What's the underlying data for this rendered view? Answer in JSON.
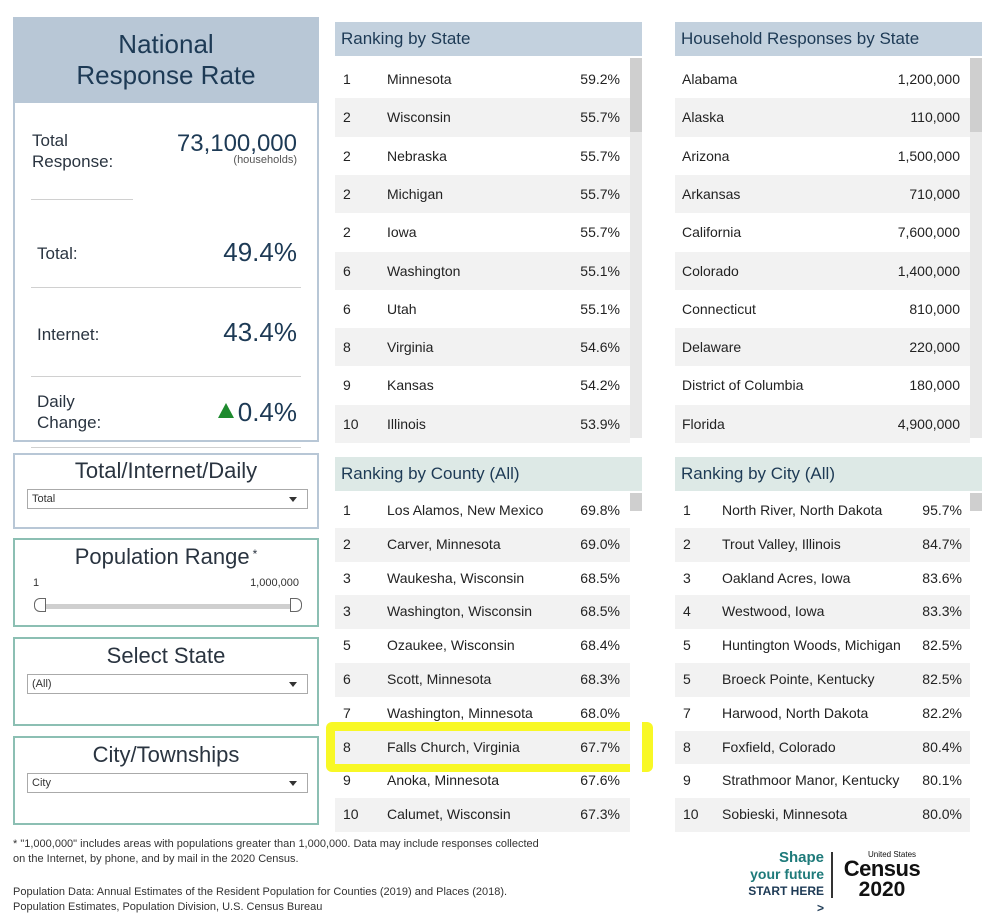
{
  "national": {
    "title_line1": "National",
    "title_line2": "Response Rate",
    "total_response_label_1": "Total",
    "total_response_label_2": "Response:",
    "total_response_value": "73,100,000",
    "total_response_unit": "(households)",
    "total_label": "Total:",
    "total_value": "49.4%",
    "internet_label": "Internet:",
    "internet_value": "43.4%",
    "daily_label_1": "Daily",
    "daily_label_2": "Change:",
    "daily_value": "0.4%"
  },
  "filters": {
    "tid_title": "Total/Internet/Daily",
    "tid_value": "Total",
    "pop_title": "Population Range",
    "pop_star": "*",
    "pop_min": "1",
    "pop_max": "1,000,000",
    "state_title": "Select State",
    "state_value": "(All)",
    "city_title": "City/Townships",
    "city_value": "City"
  },
  "ranking_state": {
    "title": "Ranking by State",
    "rows": [
      {
        "rank": "1",
        "name": "Minnesota",
        "pct": "59.2%"
      },
      {
        "rank": "2",
        "name": "Wisconsin",
        "pct": "55.7%"
      },
      {
        "rank": "2",
        "name": "Nebraska",
        "pct": "55.7%"
      },
      {
        "rank": "2",
        "name": "Michigan",
        "pct": "55.7%"
      },
      {
        "rank": "2",
        "name": "Iowa",
        "pct": "55.7%"
      },
      {
        "rank": "6",
        "name": "Washington",
        "pct": "55.1%"
      },
      {
        "rank": "6",
        "name": "Utah",
        "pct": "55.1%"
      },
      {
        "rank": "8",
        "name": "Virginia",
        "pct": "54.6%"
      },
      {
        "rank": "9",
        "name": "Kansas",
        "pct": "54.2%"
      },
      {
        "rank": "10",
        "name": "Illinois",
        "pct": "53.9%"
      }
    ]
  },
  "household_state": {
    "title": "Household Responses by State",
    "rows": [
      {
        "name": "Alabama",
        "value": "1,200,000"
      },
      {
        "name": "Alaska",
        "value": "110,000"
      },
      {
        "name": "Arizona",
        "value": "1,500,000"
      },
      {
        "name": "Arkansas",
        "value": "710,000"
      },
      {
        "name": "California",
        "value": "7,600,000"
      },
      {
        "name": "Colorado",
        "value": "1,400,000"
      },
      {
        "name": "Connecticut",
        "value": "810,000"
      },
      {
        "name": "Delaware",
        "value": "220,000"
      },
      {
        "name": "District of Columbia",
        "value": "180,000"
      },
      {
        "name": "Florida",
        "value": "4,900,000"
      }
    ]
  },
  "ranking_county": {
    "title": "Ranking by County (All)",
    "rows": [
      {
        "rank": "1",
        "name": "Los Alamos, New Mexico",
        "pct": "69.8%"
      },
      {
        "rank": "2",
        "name": "Carver, Minnesota",
        "pct": "69.0%"
      },
      {
        "rank": "3",
        "name": "Waukesha, Wisconsin",
        "pct": "68.5%"
      },
      {
        "rank": "3",
        "name": "Washington, Wisconsin",
        "pct": "68.5%"
      },
      {
        "rank": "5",
        "name": "Ozaukee, Wisconsin",
        "pct": "68.4%"
      },
      {
        "rank": "6",
        "name": "Scott, Minnesota",
        "pct": "68.3%"
      },
      {
        "rank": "7",
        "name": "Washington, Minnesota",
        "pct": "68.0%"
      },
      {
        "rank": "8",
        "name": "Falls Church, Virginia",
        "pct": "67.7%"
      },
      {
        "rank": "9",
        "name": "Anoka, Minnesota",
        "pct": "67.6%"
      },
      {
        "rank": "10",
        "name": "Calumet, Wisconsin",
        "pct": "67.3%"
      }
    ]
  },
  "ranking_city": {
    "title": "Ranking by City (All)",
    "rows": [
      {
        "rank": "1",
        "name": "North River, North Dakota",
        "pct": "95.7%"
      },
      {
        "rank": "2",
        "name": "Trout Valley, Illinois",
        "pct": "84.7%"
      },
      {
        "rank": "3",
        "name": "Oakland Acres, Iowa",
        "pct": "83.6%"
      },
      {
        "rank": "4",
        "name": "Westwood, Iowa",
        "pct": "83.3%"
      },
      {
        "rank": "5",
        "name": "Huntington Woods, Michigan",
        "pct": "82.5%"
      },
      {
        "rank": "5",
        "name": "Broeck Pointe, Kentucky",
        "pct": "82.5%"
      },
      {
        "rank": "7",
        "name": "Harwood, North Dakota",
        "pct": "82.2%"
      },
      {
        "rank": "8",
        "name": "Foxfield, Colorado",
        "pct": "80.4%"
      },
      {
        "rank": "9",
        "name": "Strathmoor Manor, Kentucky",
        "pct": "80.1%"
      },
      {
        "rank": "10",
        "name": "Sobieski, Minnesota",
        "pct": "80.0%"
      }
    ]
  },
  "footer": {
    "note_line1": "* \"1,000,000\" includes areas with populations greater than 1,000,000.  Data may include responses collected",
    "note_line2": "on the Internet, by phone, and by mail in the 2020 Census.",
    "source_line1": "Population Data: Annual Estimates of the Resident Population for Counties (2019) and Places (2018).",
    "source_line2": "Population Estimates, Population Division, U.S. Census Bureau"
  },
  "logo": {
    "shape": "Shape",
    "your_future": "your future",
    "start_here": "START HERE >",
    "united_states": "United States",
    "census": "Census",
    "year": "2020"
  },
  "colors": {
    "header_blue": "#c3d1de",
    "header_teal": "#dde9e6",
    "highlight": "#f7f700",
    "up_arrow": "#1e8a2e",
    "brand_teal": "#1e7a7a"
  }
}
